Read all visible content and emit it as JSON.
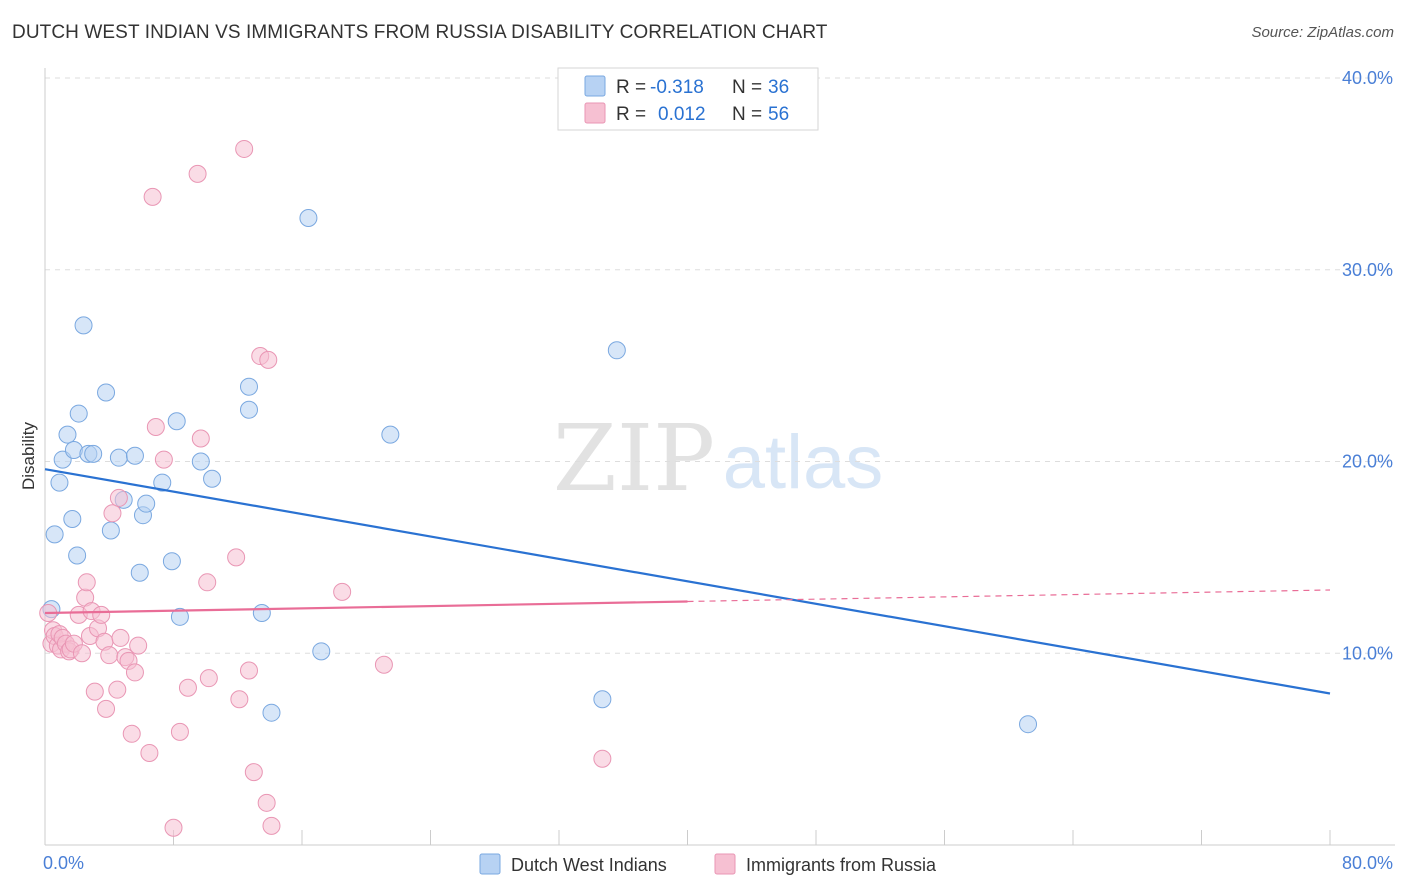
{
  "header": {
    "title": "DUTCH WEST INDIAN VS IMMIGRANTS FROM RUSSIA DISABILITY CORRELATION CHART",
    "source": "Source: ZipAtlas.com"
  },
  "watermark": {
    "zip": "ZIP",
    "atlas": "atlas"
  },
  "colors": {
    "blue_fill": "#b7d2f3",
    "blue_stroke": "#7aa8e0",
    "blue_line": "#2a72d2",
    "pink_fill": "#f6c0d2",
    "pink_stroke": "#e996b4",
    "pink_line": "#e96d97",
    "tick_label": "#4a7fd6",
    "grid": "#dddddd",
    "axis": "#cccccc"
  },
  "legend": [
    {
      "r_label": "R =",
      "r_value": "-0.318",
      "n_label": "N =",
      "n_value": "36"
    },
    {
      "r_label": "R =",
      "r_value": "0.012",
      "n_label": "N =",
      "n_value": "56"
    }
  ],
  "chart_data": {
    "type": "scatter",
    "title": "DUTCH WEST INDIAN VS IMMIGRANTS FROM RUSSIA DISABILITY CORRELATION CHART",
    "xlabel": "",
    "ylabel": "Disability",
    "xlim": [
      0,
      80
    ],
    "ylim": [
      0,
      40
    ],
    "x_tick_labels": [
      {
        "value": 0,
        "label": "0.0%"
      },
      {
        "value": 80,
        "label": "80.0%"
      }
    ],
    "y_tick_labels": [
      {
        "value": 10,
        "label": "10.0%"
      },
      {
        "value": 20,
        "label": "20.0%"
      },
      {
        "value": 30,
        "label": "30.0%"
      },
      {
        "value": 40,
        "label": "40.0%"
      }
    ],
    "legend_placement": "top-center",
    "series": [
      {
        "name": "Dutch West Indians",
        "color": "blue",
        "trend": {
          "x0": 0,
          "y0": 19.6,
          "x1": 80,
          "y1": 7.9,
          "solid_until": 80
        },
        "points": [
          [
            0.4,
            12.3
          ],
          [
            0.6,
            16.2
          ],
          [
            0.9,
            18.9
          ],
          [
            1.1,
            20.1
          ],
          [
            1.4,
            21.4
          ],
          [
            1.7,
            17.0
          ],
          [
            1.8,
            20.6
          ],
          [
            2.0,
            15.1
          ],
          [
            2.1,
            22.5
          ],
          [
            2.4,
            27.1
          ],
          [
            2.7,
            20.4
          ],
          [
            3.0,
            20.4
          ],
          [
            3.8,
            23.6
          ],
          [
            4.1,
            16.4
          ],
          [
            4.6,
            20.2
          ],
          [
            4.9,
            18.0
          ],
          [
            5.6,
            20.3
          ],
          [
            5.9,
            14.2
          ],
          [
            6.1,
            17.2
          ],
          [
            6.3,
            17.8
          ],
          [
            7.3,
            18.9
          ],
          [
            7.9,
            14.8
          ],
          [
            8.2,
            22.1
          ],
          [
            8.4,
            11.9
          ],
          [
            10.4,
            19.1
          ],
          [
            12.7,
            22.7
          ],
          [
            12.7,
            23.9
          ],
          [
            13.5,
            12.1
          ],
          [
            14.1,
            6.9
          ],
          [
            16.4,
            32.7
          ],
          [
            17.2,
            10.1
          ],
          [
            21.5,
            21.4
          ],
          [
            35.6,
            25.8
          ],
          [
            34.7,
            7.6
          ],
          [
            61.2,
            6.3
          ],
          [
            9.7,
            20.0
          ]
        ]
      },
      {
        "name": "Immigrants from Russia",
        "color": "pink",
        "trend": {
          "x0": 0,
          "y0": 12.1,
          "x1": 80,
          "y1": 13.3,
          "solid_until": 40
        },
        "points": [
          [
            0.2,
            12.1
          ],
          [
            0.4,
            10.5
          ],
          [
            0.5,
            11.2
          ],
          [
            0.6,
            10.9
          ],
          [
            0.8,
            10.4
          ],
          [
            0.9,
            11.0
          ],
          [
            1.0,
            10.2
          ],
          [
            1.1,
            10.8
          ],
          [
            1.3,
            10.5
          ],
          [
            1.5,
            10.1
          ],
          [
            1.6,
            10.2
          ],
          [
            1.8,
            10.5
          ],
          [
            2.1,
            12.0
          ],
          [
            2.3,
            10.0
          ],
          [
            2.5,
            12.9
          ],
          [
            2.6,
            13.7
          ],
          [
            2.8,
            10.9
          ],
          [
            2.9,
            12.2
          ],
          [
            3.1,
            8.0
          ],
          [
            3.3,
            11.3
          ],
          [
            3.5,
            12.0
          ],
          [
            3.7,
            10.6
          ],
          [
            3.8,
            7.1
          ],
          [
            4.0,
            9.9
          ],
          [
            4.2,
            17.3
          ],
          [
            4.5,
            8.1
          ],
          [
            4.6,
            18.1
          ],
          [
            4.7,
            10.8
          ],
          [
            5.0,
            9.8
          ],
          [
            5.2,
            9.6
          ],
          [
            5.4,
            5.8
          ],
          [
            5.6,
            9.0
          ],
          [
            5.8,
            10.4
          ],
          [
            6.5,
            4.8
          ],
          [
            6.7,
            33.8
          ],
          [
            6.9,
            21.8
          ],
          [
            7.4,
            20.1
          ],
          [
            8.0,
            0.9
          ],
          [
            8.4,
            5.9
          ],
          [
            8.9,
            8.2
          ],
          [
            9.5,
            35.0
          ],
          [
            9.7,
            21.2
          ],
          [
            10.1,
            13.7
          ],
          [
            10.2,
            8.7
          ],
          [
            11.9,
            15.0
          ],
          [
            12.1,
            7.6
          ],
          [
            12.4,
            36.3
          ],
          [
            12.7,
            9.1
          ],
          [
            13.0,
            3.8
          ],
          [
            13.4,
            25.5
          ],
          [
            13.8,
            2.2
          ],
          [
            14.1,
            1.0
          ],
          [
            13.9,
            25.3
          ],
          [
            18.5,
            13.2
          ],
          [
            21.1,
            9.4
          ],
          [
            34.7,
            4.5
          ]
        ]
      }
    ]
  }
}
